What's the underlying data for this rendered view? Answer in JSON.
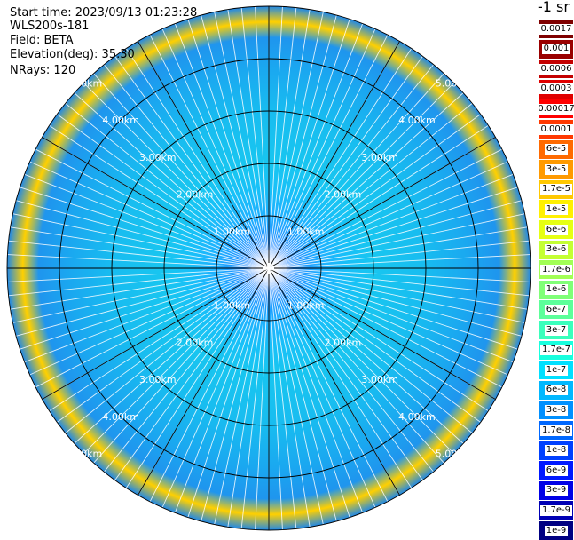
{
  "info": {
    "start_time": "Start time: 2023/09/13 01:23:28",
    "device": "WLS200s-181",
    "field": "Field: BETA",
    "elevation": "Elevation(deg): 35.30",
    "nrays": "NRays: 120"
  },
  "chart_data": {
    "type": "heatmap",
    "projection": "polar (PPI scan)",
    "field": "BETA",
    "elevation_deg": 35.3,
    "n_rays": 120,
    "range_rings_km": [
      1.0,
      2.0,
      3.0,
      4.0,
      5.0
    ],
    "ring_labels": [
      "1.00km",
      "2.00km",
      "3.00km",
      "4.00km",
      "5.00km"
    ],
    "spoke_angles_deg": [
      0,
      30,
      60,
      90,
      120,
      150,
      180,
      210,
      240,
      270,
      300,
      330
    ],
    "max_range_km": 5.0,
    "scale": "log",
    "colorbar": {
      "title": "-1 sr",
      "ticks": [
        "0.0017",
        "0.001",
        "0.0006",
        "0.0003",
        "0.00017",
        "0.0001",
        "6e-5",
        "3e-5",
        "1.7e-5",
        "1e-5",
        "6e-6",
        "3e-6",
        "1.7e-6",
        "1e-6",
        "6e-7",
        "3e-7",
        "1.7e-7",
        "1e-7",
        "6e-8",
        "3e-8",
        "1.7e-8",
        "1e-8",
        "6e-9",
        "3e-9",
        "1.7e-9",
        "1e-9"
      ],
      "colors": [
        "#7f0000",
        "#9a0000",
        "#c40000",
        "#e00000",
        "#ff0000",
        "#ff3800",
        "#ff6a00",
        "#ff9a00",
        "#ffc800",
        "#fff000",
        "#e6ff12",
        "#c4ff33",
        "#a2ff55",
        "#80ff77",
        "#5cff9a",
        "#3affbc",
        "#18ffde",
        "#00e0ff",
        "#00b8ff",
        "#0090ff",
        "#0068ff",
        "#0040ff",
        "#0018ff",
        "#0000e6",
        "#0000b4",
        "#000082"
      ]
    },
    "radial_profile": [
      {
        "range_km": 0.0,
        "color": "#1560ff"
      },
      {
        "range_km": 0.5,
        "color": "#1a8cff"
      },
      {
        "range_km": 1.0,
        "color": "#1fb0ff"
      },
      {
        "range_km": 1.5,
        "color": "#18c0f8"
      },
      {
        "range_km": 2.0,
        "color": "#18c6f0"
      },
      {
        "range_km": 3.0,
        "color": "#18bcf0"
      },
      {
        "range_km": 3.8,
        "color": "#1aa8f0"
      },
      {
        "range_km": 4.4,
        "color": "#1f95ee"
      },
      {
        "range_km": 4.7,
        "color": "#ffd000"
      },
      {
        "range_km": 5.0,
        "color": "#1e88e8"
      }
    ]
  }
}
